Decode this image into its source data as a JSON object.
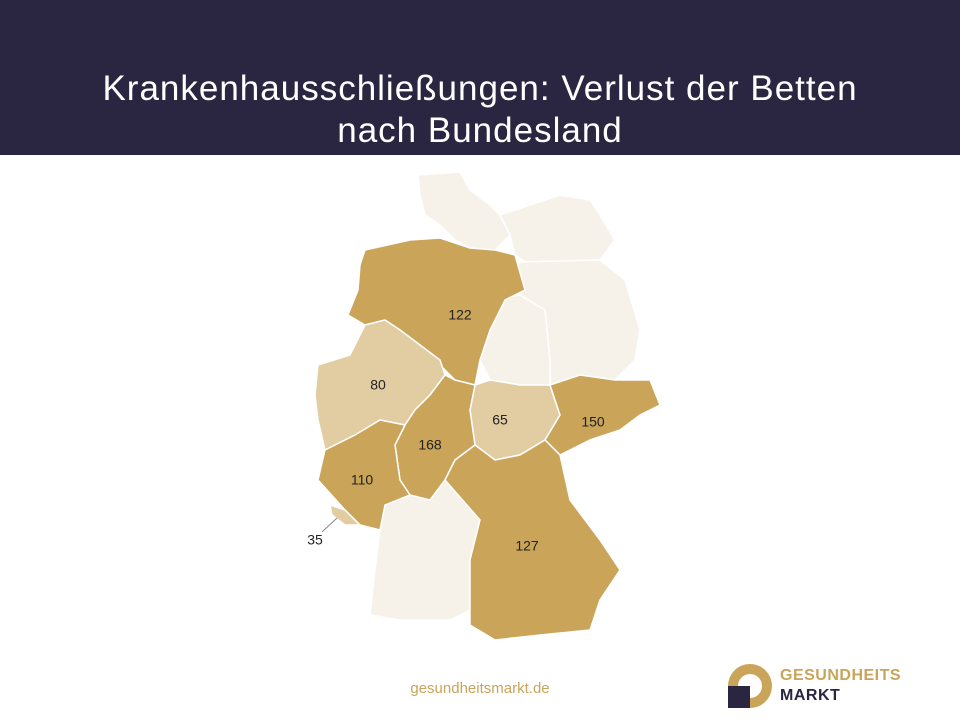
{
  "header": {
    "title": "Krankenhausschließungen: Verlust der Betten nach Bundesland"
  },
  "map": {
    "regions": [
      {
        "value": 122,
        "color": "#c9a459"
      },
      {
        "value": 80,
        "color": "#e2cda3"
      },
      {
        "value": 65,
        "color": "#e2cda3"
      },
      {
        "value": 150,
        "color": "#c9a459"
      },
      {
        "value": 168,
        "color": "#c9a459"
      },
      {
        "value": 110,
        "color": "#c9a459"
      },
      {
        "value": 127,
        "color": "#c9a459"
      },
      {
        "value": 35,
        "color": "#e2cda3"
      }
    ]
  },
  "footer": {
    "url": "gesundheitsmarkt.de"
  },
  "logo": {
    "line1": "GESUNDHEITS",
    "line2": "MARKT"
  }
}
